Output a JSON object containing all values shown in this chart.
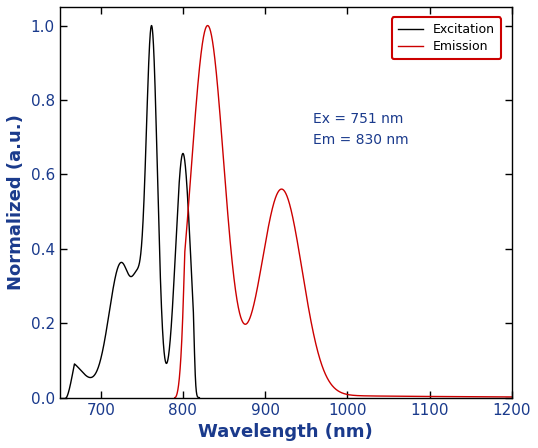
{
  "xlim": [
    650,
    1200
  ],
  "ylim": [
    0.0,
    1.05
  ],
  "xlabel": "Wavelength (nm)",
  "ylabel": "Normalized (a.u.)",
  "yticks": [
    0.0,
    0.2,
    0.4,
    0.6,
    0.8,
    1.0
  ],
  "xticks": [
    700,
    800,
    900,
    1000,
    1100,
    1200
  ],
  "legend_labels": [
    "Excitation",
    "Emission"
  ],
  "annotation_text": "Ex = 751 nm\nEm = 830 nm",
  "annotation_color": "#1a3a8c",
  "tick_label_color": "#1a3a8c",
  "axis_label_color": "#1a3a8c",
  "excitation_color": "#000000",
  "emission_color": "#cc0000",
  "background_color": "#ffffff",
  "legend_edge_color": "#cc0000",
  "figsize": [
    5.38,
    4.48
  ],
  "dpi": 100
}
